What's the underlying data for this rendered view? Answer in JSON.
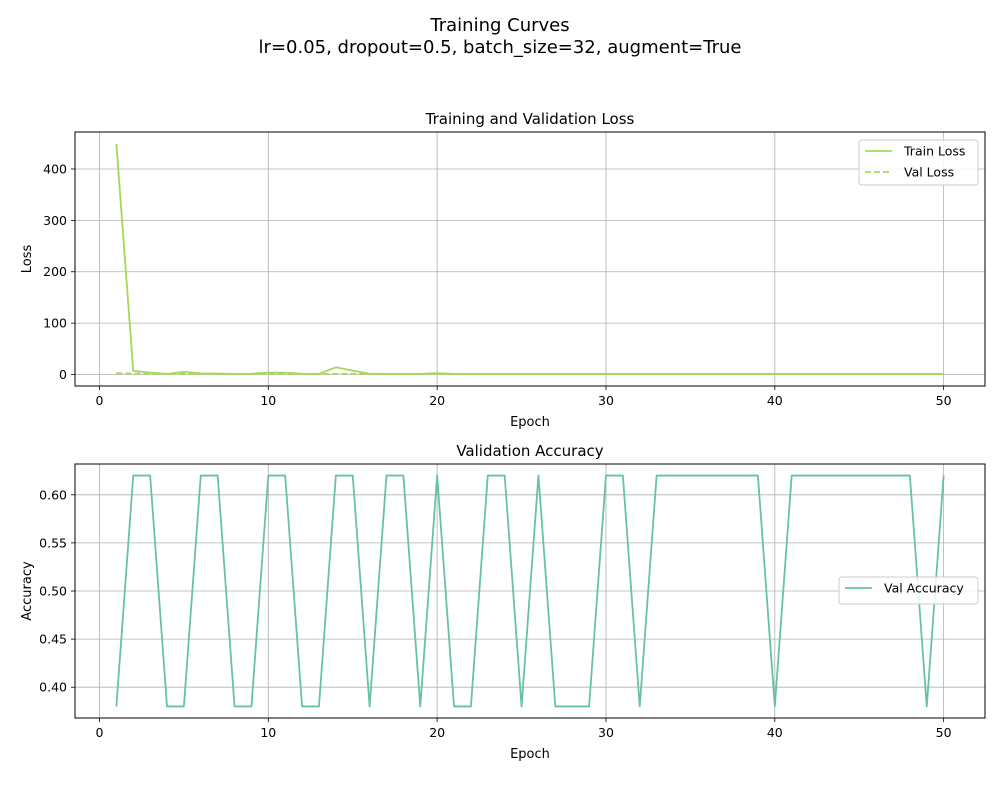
{
  "figure": {
    "title": "Training Curves",
    "subtitle": "lr=0.05, dropout=0.5, batch_size=32, augment=True"
  },
  "chart_data": [
    {
      "type": "line",
      "title": "Training and Validation Loss",
      "xlabel": "Epoch",
      "ylabel": "Loss",
      "xlim": [
        -1.45,
        52.45
      ],
      "ylim": [
        -22.4,
        472
      ],
      "xticks": [
        0,
        10,
        20,
        30,
        40,
        50
      ],
      "yticks": [
        0,
        100,
        200,
        300,
        400
      ],
      "grid": true,
      "legend_position": "upper-right",
      "x": [
        1,
        2,
        3,
        4,
        5,
        6,
        7,
        8,
        9,
        10,
        11,
        12,
        13,
        14,
        15,
        16,
        17,
        18,
        19,
        20,
        21,
        22,
        23,
        24,
        25,
        26,
        27,
        28,
        29,
        30,
        31,
        32,
        33,
        34,
        35,
        36,
        37,
        38,
        39,
        40,
        41,
        42,
        43,
        44,
        45,
        46,
        47,
        48,
        49,
        50
      ],
      "series": [
        {
          "name": "Train Loss",
          "color": "#a6d854",
          "style": "solid",
          "values": [
            449,
            7,
            3.5,
            1.2,
            5,
            2.2,
            1.8,
            1.2,
            1.5,
            3.5,
            3.5,
            1.5,
            1.2,
            14,
            7.5,
            1.5,
            1.2,
            1.2,
            1.2,
            2.5,
            1.2,
            1.2,
            1.2,
            1.2,
            1.2,
            1.2,
            1.2,
            1.2,
            1.2,
            1.2,
            1.2,
            1.2,
            1.2,
            1.2,
            1.2,
            1.2,
            1.2,
            1.2,
            1.2,
            1.2,
            1.2,
            1.2,
            1.2,
            1.2,
            1.2,
            1.2,
            1.2,
            1.2,
            1.2,
            1.2
          ]
        },
        {
          "name": "Val Loss",
          "color": "#a6d854",
          "style": "dashed",
          "values": [
            2.5,
            1.8,
            1.2,
            1.2,
            1.2,
            1.2,
            1.2,
            1.2,
            1.2,
            1.2,
            1.2,
            1.2,
            1.2,
            1.2,
            1.2,
            1.2,
            1.2,
            1.2,
            1.2,
            1.2,
            1.2,
            1.2,
            1.2,
            1.2,
            1.2,
            1.2,
            1.2,
            1.2,
            1.2,
            1.2,
            1.2,
            1.2,
            1.2,
            1.2,
            1.2,
            1.2,
            1.2,
            1.2,
            1.2,
            1.2,
            1.2,
            1.2,
            1.2,
            1.2,
            1.2,
            1.2,
            1.2,
            1.2,
            1.2,
            1.2
          ]
        }
      ]
    },
    {
      "type": "line",
      "title": "Validation Accuracy",
      "xlabel": "Epoch",
      "ylabel": "Accuracy",
      "xlim": [
        -1.45,
        52.45
      ],
      "ylim": [
        0.368,
        0.632
      ],
      "xticks": [
        0,
        10,
        20,
        30,
        40,
        50
      ],
      "yticks": [
        0.4,
        0.45,
        0.5,
        0.55,
        0.6
      ],
      "ytick_labels": [
        "0.40",
        "0.45",
        "0.50",
        "0.55",
        "0.60"
      ],
      "grid": true,
      "legend_position": "center-right",
      "x": [
        1,
        2,
        3,
        4,
        5,
        6,
        7,
        8,
        9,
        10,
        11,
        12,
        13,
        14,
        15,
        16,
        17,
        18,
        19,
        20,
        21,
        22,
        23,
        24,
        25,
        26,
        27,
        28,
        29,
        30,
        31,
        32,
        33,
        34,
        35,
        36,
        37,
        38,
        39,
        40,
        41,
        42,
        43,
        44,
        45,
        46,
        47,
        48,
        49,
        50
      ],
      "series": [
        {
          "name": "Val Accuracy",
          "color": "#66c2a5",
          "style": "solid",
          "values": [
            0.38,
            0.62,
            0.62,
            0.38,
            0.38,
            0.62,
            0.62,
            0.38,
            0.38,
            0.62,
            0.62,
            0.38,
            0.38,
            0.62,
            0.62,
            0.38,
            0.62,
            0.62,
            0.38,
            0.62,
            0.38,
            0.38,
            0.62,
            0.62,
            0.38,
            0.62,
            0.38,
            0.38,
            0.38,
            0.62,
            0.62,
            0.38,
            0.62,
            0.62,
            0.62,
            0.62,
            0.62,
            0.62,
            0.62,
            0.38,
            0.62,
            0.62,
            0.62,
            0.62,
            0.62,
            0.62,
            0.62,
            0.62,
            0.38,
            0.62
          ]
        }
      ]
    }
  ]
}
